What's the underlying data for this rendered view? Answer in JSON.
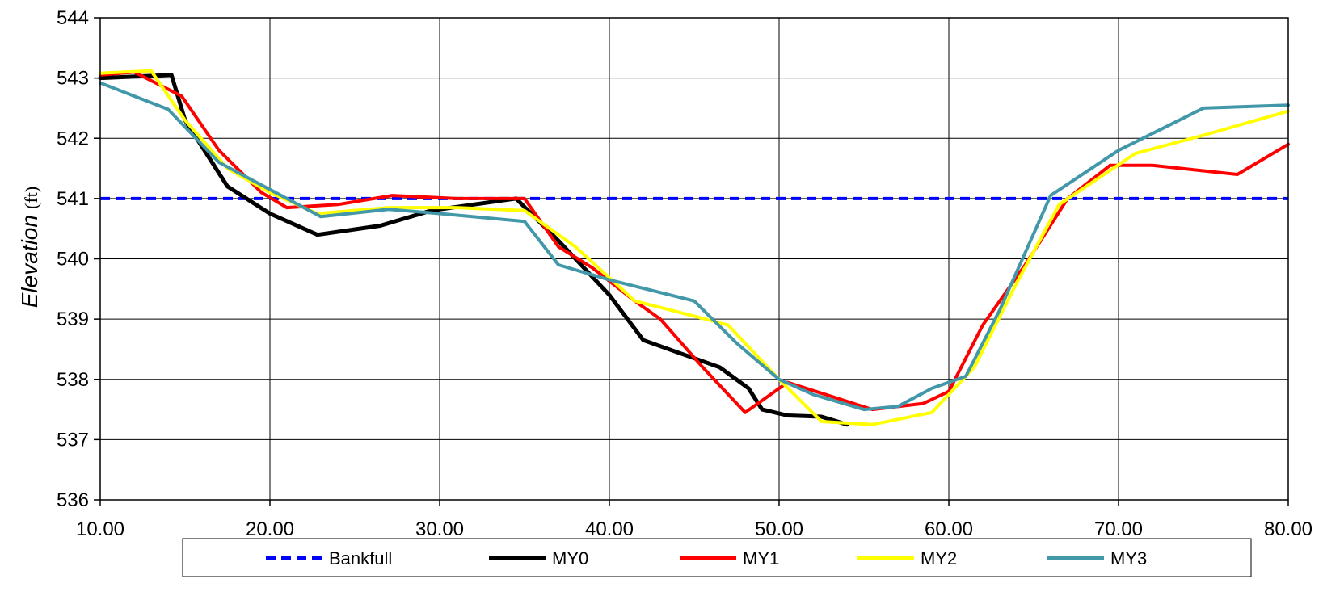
{
  "chart_data": {
    "type": "line",
    "ylabel_main": "Elevation",
    "ylabel_unit": "(ft)",
    "xlim": [
      10,
      80
    ],
    "ylim": [
      536,
      544
    ],
    "x_ticks": [
      "10.00",
      "20.00",
      "30.00",
      "40.00",
      "50.00",
      "60.00",
      "70.00",
      "80.00"
    ],
    "y_ticks": [
      "536",
      "537",
      "538",
      "539",
      "540",
      "541",
      "542",
      "543",
      "544"
    ],
    "grid": true,
    "legend_position": "bottom",
    "series": [
      {
        "name": "Bankfull",
        "color": "#0000ff",
        "style": "dashed",
        "x": [
          10,
          80
        ],
        "y": [
          541.0,
          541.0
        ]
      },
      {
        "name": "MY0",
        "color": "#000000",
        "style": "solid",
        "x": [
          10,
          14.2,
          15.0,
          17.5,
          20.0,
          22.8,
          26.5,
          29.5,
          32.0,
          34.5,
          37.0,
          40.0,
          42.0,
          44.0,
          46.5,
          48.2,
          49.0,
          50.5,
          52.5,
          54.0
        ],
        "y": [
          543.0,
          543.05,
          542.3,
          541.2,
          540.75,
          540.4,
          540.55,
          540.8,
          540.9,
          541.0,
          540.3,
          539.4,
          538.65,
          538.45,
          538.2,
          537.85,
          537.5,
          537.4,
          537.38,
          537.25
        ]
      },
      {
        "name": "MY1",
        "color": "#ff0000",
        "style": "solid",
        "x": [
          10,
          12.0,
          14.8,
          17.0,
          19.5,
          21.0,
          24.0,
          27.2,
          31.0,
          35.0,
          37.0,
          39.0,
          41.5,
          43.0,
          45.5,
          48.0,
          50.5,
          55.5,
          58.5,
          60.0,
          62.0,
          64.5,
          67.0,
          69.5,
          72.0,
          77.0,
          80.0
        ],
        "y": [
          543.05,
          543.1,
          542.7,
          541.8,
          541.1,
          540.85,
          540.9,
          541.05,
          541.0,
          541.0,
          540.2,
          539.85,
          539.3,
          539.0,
          538.2,
          537.45,
          537.95,
          537.5,
          537.6,
          537.8,
          538.9,
          539.9,
          541.0,
          541.55,
          541.55,
          541.4,
          541.9
        ]
      },
      {
        "name": "MY2",
        "color": "#ffff00",
        "style": "solid",
        "x": [
          10,
          13.0,
          15.0,
          17.5,
          20.0,
          22.8,
          27.0,
          31.0,
          35.0,
          38.0,
          41.5,
          45.0,
          47.0,
          50.0,
          52.5,
          55.5,
          59.0,
          61.5,
          64.0,
          66.5,
          71.0,
          75.0,
          80.0
        ],
        "y": [
          543.08,
          543.12,
          542.3,
          541.5,
          541.1,
          540.75,
          540.85,
          540.85,
          540.8,
          540.2,
          539.3,
          539.05,
          538.9,
          538.0,
          537.3,
          537.25,
          537.45,
          538.2,
          539.6,
          540.9,
          541.75,
          542.05,
          542.45
        ]
      },
      {
        "name": "MY3",
        "color": "#4298a8",
        "style": "solid",
        "x": [
          10,
          14.0,
          17.0,
          20.0,
          23.0,
          27.0,
          30.0,
          35.0,
          37.0,
          40.0,
          45.0,
          47.5,
          50.0,
          52.0,
          55.0,
          57.0,
          59.0,
          61.0,
          63.0,
          66.0,
          70.0,
          75.0,
          80.0
        ],
        "y": [
          542.92,
          542.48,
          541.6,
          541.15,
          540.7,
          540.82,
          540.75,
          540.62,
          539.9,
          539.65,
          539.3,
          538.6,
          538.0,
          537.75,
          537.5,
          537.55,
          537.85,
          538.05,
          539.15,
          541.05,
          541.8,
          542.5,
          542.55
        ]
      }
    ]
  }
}
